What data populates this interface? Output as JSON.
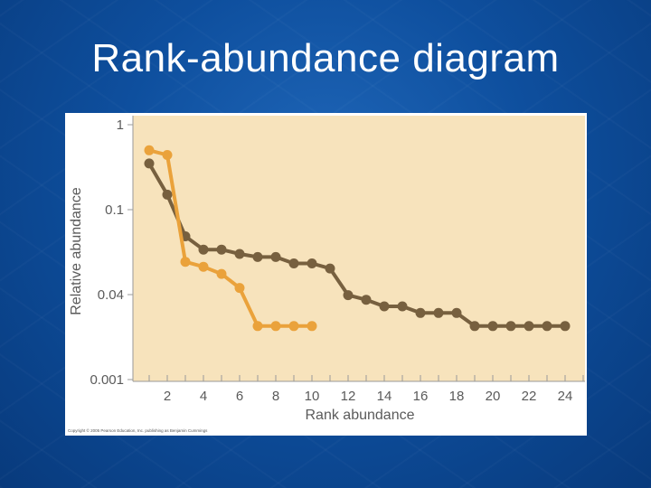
{
  "slide": {
    "title": "Rank-abundance diagram",
    "copyright": "Copyright © 2005 Pearson Education, Inc. publishing as Benjamin Cummings"
  },
  "colors": {
    "background": "#0e4f9e",
    "plot_background": "#f7e3bc",
    "series_dark": "#77603f",
    "series_orange": "#eaa23b"
  },
  "chart_data": {
    "type": "line",
    "xlabel": "Rank abundance",
    "ylabel": "Relative abundance",
    "x_ticks": [
      2,
      4,
      6,
      8,
      10,
      12,
      14,
      16,
      18,
      20,
      22,
      24
    ],
    "xlim": [
      0,
      25
    ],
    "y_scale": "categorical-log",
    "y_ticks": [
      "1",
      "0.1",
      "0.04",
      "0.001"
    ],
    "grid": false,
    "legend": "none",
    "series": [
      {
        "color": "#77603f",
        "x": [
          1,
          2,
          3,
          4,
          5,
          6,
          7,
          8,
          9,
          10,
          11,
          12,
          13,
          14,
          15,
          16,
          17,
          18,
          19,
          20,
          21,
          22,
          23,
          24
        ],
        "y": [
          0.35,
          0.15,
          0.075,
          0.065,
          0.065,
          0.062,
          0.06,
          0.06,
          0.056,
          0.056,
          0.053,
          0.039,
          0.032,
          0.024,
          0.024,
          0.018,
          0.018,
          0.018,
          0.0102,
          0.0102,
          0.0102,
          0.0102,
          0.0102,
          0.0102
        ]
      },
      {
        "color": "#eaa23b",
        "x": [
          1,
          2,
          3,
          4,
          5,
          6,
          7,
          8,
          9,
          10
        ],
        "y": [
          0.5,
          0.44,
          0.057,
          0.054,
          0.05,
          0.043,
          0.0102,
          0.0102,
          0.0102,
          0.0102
        ]
      }
    ]
  }
}
